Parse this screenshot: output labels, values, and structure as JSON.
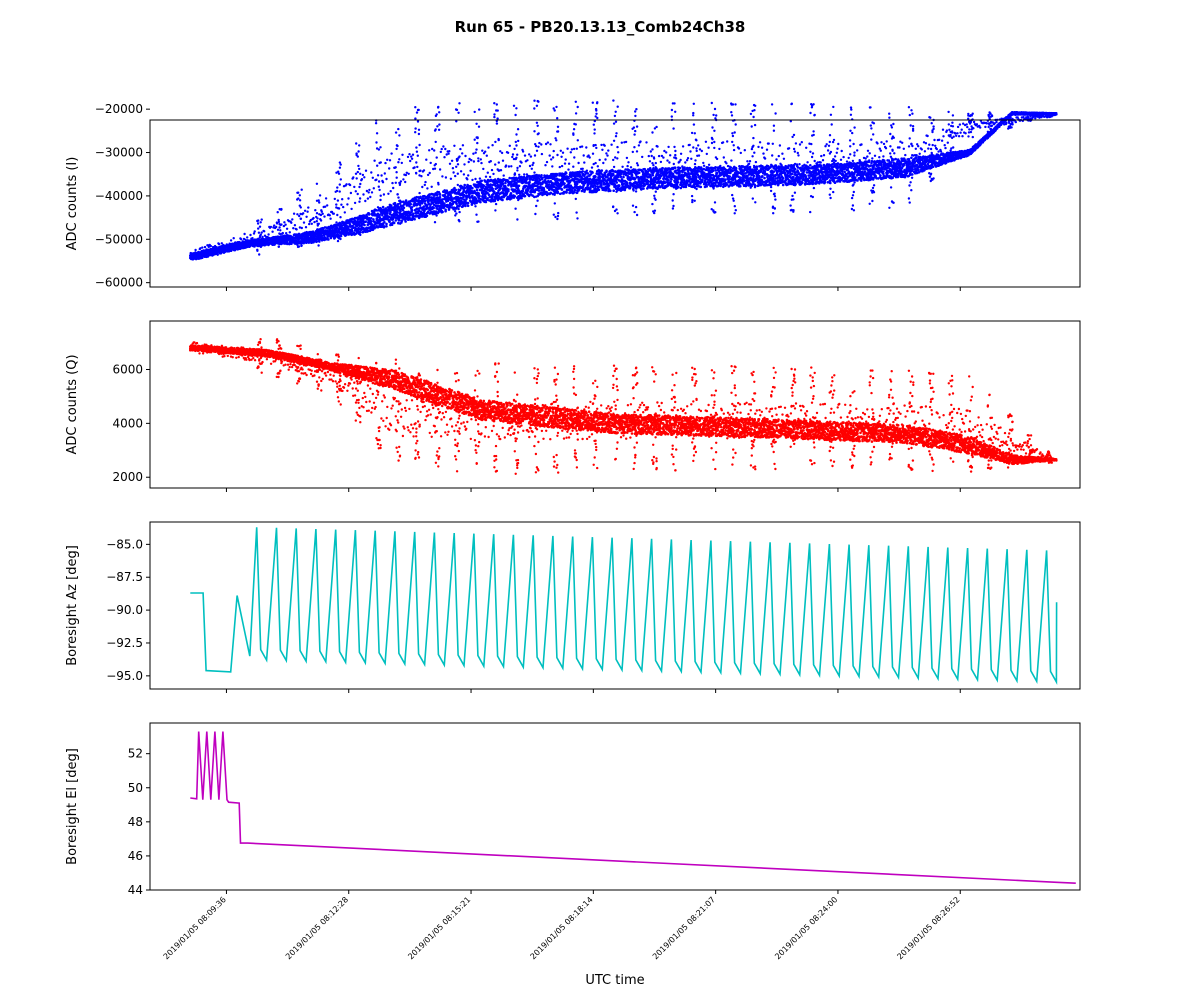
{
  "chart_data": {
    "type": "line",
    "title": "Run 65 - PB20.13.13_Comb24Ch38",
    "xlabel": "UTC time",
    "x_ticks": [
      "2019/01/05 08:09:36",
      "2019/01/05 08:12:28",
      "2019/01/05 08:15:21",
      "2019/01/05 08:18:14",
      "2019/01/05 08:21:07",
      "2019/01/05 08:24:00",
      "2019/01/05 08:26:52"
    ],
    "x_range_minutes": [
      -1.8,
      20.1
    ],
    "x_start_minutes": -0.85,
    "x_end_minutes": 19.55,
    "panels": [
      {
        "name": "adc-i",
        "type": "scatter",
        "ylabel": "ADC counts (I)",
        "color": "#0000ff",
        "ylim": [
          -61000,
          -22500
        ],
        "yticks": [
          -60000,
          -50000,
          -40000,
          -30000,
          -20000
        ],
        "ytick_labels": [
          "−60000",
          "−50000",
          "−40000",
          "−30000",
          "−20000"
        ],
        "baseline_series": {
          "x": [
            -0.8,
            0.5,
            2,
            3,
            4,
            6,
            8,
            10,
            12,
            14,
            16,
            17.5,
            18.5,
            19.5
          ],
          "y": [
            -54000,
            -51000,
            -49500,
            -47000,
            -44000,
            -39000,
            -37000,
            -36000,
            -35500,
            -35000,
            -33500,
            -30000,
            -21000,
            -21000
          ]
        },
        "upper_envelope": {
          "x": [
            -0.8,
            1,
            2.5,
            3.5,
            4.5,
            6,
            9,
            13,
            16,
            17.5,
            19.5
          ],
          "y": [
            -49000,
            -44000,
            -33000,
            -22000,
            -19000,
            -18000,
            -18000,
            -18500,
            -19000,
            -20500,
            -21000
          ]
        },
        "lower_envelope": {
          "x": [
            -0.8,
            1,
            2.5,
            3.5,
            4.5,
            6,
            9,
            13,
            16,
            17.5,
            19.5
          ],
          "y": [
            -58000,
            -53000,
            -51000,
            -48000,
            -47000,
            -46000,
            -45000,
            -44000,
            -43000,
            -27000,
            -21500
          ]
        }
      },
      {
        "name": "adc-q",
        "type": "scatter",
        "ylabel": "ADC counts (Q)",
        "color": "#ff0000",
        "ylim": [
          1600,
          7800
        ],
        "yticks": [
          2000,
          4000,
          6000
        ],
        "ytick_labels": [
          "2000",
          "4000",
          "6000"
        ],
        "baseline_series": {
          "x": [
            -0.8,
            1,
            2.5,
            4,
            6,
            9,
            13,
            16,
            17.5,
            18.5,
            19.5
          ],
          "y": [
            6800,
            6600,
            6100,
            5600,
            4500,
            4000,
            3800,
            3600,
            3200,
            2650,
            2650
          ]
        },
        "upper_envelope": {
          "x": [
            -0.8,
            1,
            2.5,
            4,
            6,
            9,
            13,
            16,
            17.5,
            19.5
          ],
          "y": [
            7400,
            7200,
            6600,
            6400,
            6300,
            6200,
            6100,
            6000,
            5800,
            2750
          ]
        },
        "lower_envelope": {
          "x": [
            -0.8,
            1,
            2.5,
            4,
            6,
            9,
            13,
            16,
            17.5,
            19.5
          ],
          "y": [
            6300,
            5800,
            5000,
            2300,
            2100,
            2200,
            2300,
            2200,
            2200,
            2550
          ]
        }
      },
      {
        "name": "boresight-az",
        "type": "line",
        "ylabel": "Boresight Az [deg]",
        "color": "#00bfbf",
        "ylim": [
          -96.0,
          -83.3
        ],
        "yticks": [
          -95.0,
          -92.5,
          -90.0,
          -87.5,
          -85.0
        ],
        "ytick_labels": [
          "−95.0",
          "−92.5",
          "−90.0",
          "−87.5",
          "−85.0"
        ],
        "segments": [
          {
            "x": [
              -0.85,
              -0.55,
              -0.48,
              0.1
            ],
            "y": [
              -88.7,
              -88.7,
              -94.6,
              -94.7
            ]
          },
          {
            "x": [
              0.1,
              0.25,
              0.55
            ],
            "y": [
              -94.7,
              -88.9,
              -93.5
            ]
          }
        ],
        "scan": {
          "x_start": 0.55,
          "x_end": 19.55,
          "period": 0.465,
          "max_start": -83.7,
          "max_end": -85.5,
          "min_start": -93.8,
          "min_end": -95.5,
          "final_value": -89.4
        }
      },
      {
        "name": "boresight-el",
        "type": "line",
        "ylabel": "Boresight El [deg]",
        "color": "#bf00bf",
        "ylim": [
          44.0,
          53.8
        ],
        "yticks": [
          44,
          46,
          48,
          50,
          52
        ],
        "ytick_labels": [
          "44",
          "46",
          "48",
          "50",
          "52"
        ],
        "segments": [
          {
            "x": [
              -0.85,
              -0.7
            ],
            "y": [
              49.4,
              49.35
            ]
          },
          {
            "x": [
              0.05,
              0.3,
              0.33,
              0.5,
              20
            ],
            "y": [
              49.15,
              49.1,
              46.75,
              46.75,
              44.4
            ]
          }
        ],
        "oscillation": {
          "x_start": -0.7,
          "x_end": 0.05,
          "period": 0.19,
          "max": 53.3,
          "min": 49.3
        },
        "drift": {
          "x": [
            0.5,
            19.55
          ],
          "y": [
            46.75,
            44.45
          ]
        }
      }
    ]
  }
}
